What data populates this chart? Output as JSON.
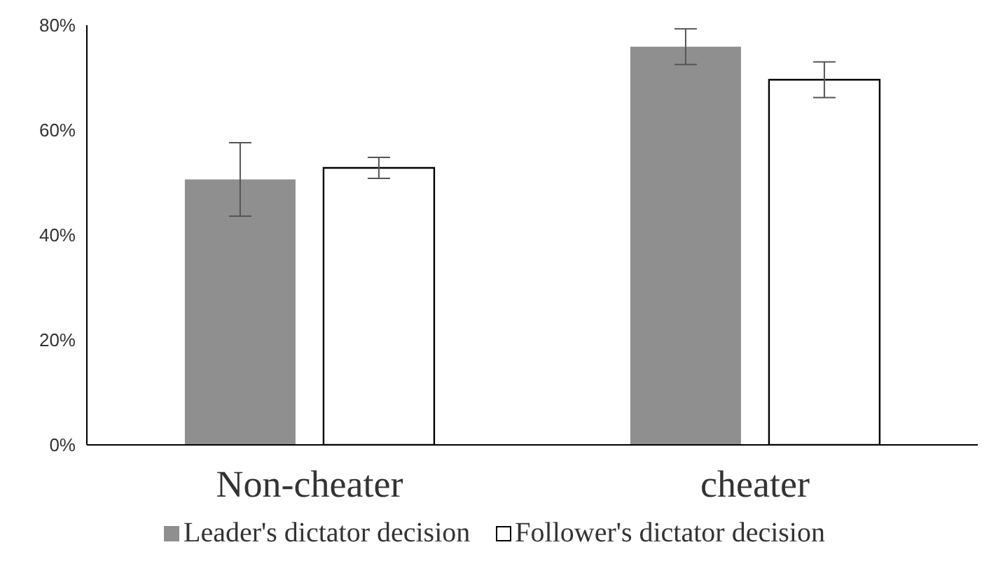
{
  "chart_data": {
    "type": "bar",
    "categories": [
      "Non-cheater",
      "cheater"
    ],
    "series": [
      {
        "name": "Leader's dictator decision",
        "color": "#8f8f8f",
        "values": [
          50.6,
          75.9
        ],
        "errors": [
          7,
          3.4
        ]
      },
      {
        "name": "Follower's dictator decision",
        "color": "#ffffff",
        "values": [
          52.8,
          69.6
        ],
        "errors": [
          2,
          3.4
        ]
      }
    ],
    "ylim": [
      0,
      80
    ],
    "yticks": [
      {
        "value": 0,
        "label": "0%"
      },
      {
        "value": 20,
        "label": "20%"
      },
      {
        "value": 40,
        "label": "40%"
      },
      {
        "value": 60,
        "label": "60%"
      },
      {
        "value": 80,
        "label": "80%"
      }
    ],
    "legend": "bottom",
    "grid": false
  }
}
